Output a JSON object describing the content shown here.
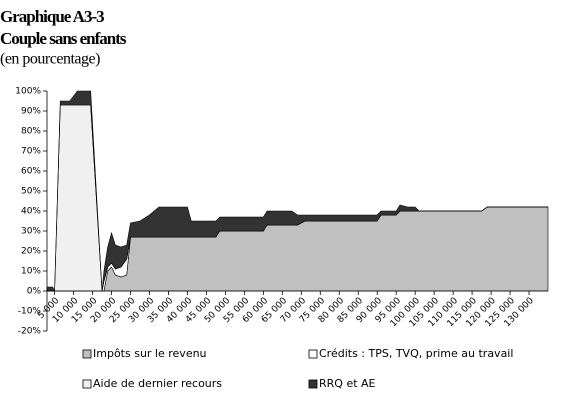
{
  "chart_data": {
    "type": "stacked_area",
    "title": "Graphique A3-3",
    "subtitle": "Couple sans enfants",
    "note": "(en pourcentage)",
    "x": [
      3000,
      4500,
      5000,
      6500,
      9000,
      11000,
      14500,
      17500,
      18000,
      19000,
      20000,
      21000,
      22500,
      24000,
      25000,
      27500,
      30000,
      32500,
      40000,
      41000,
      47500,
      48500,
      60000,
      61000,
      67500,
      69000,
      71000,
      90000,
      91000,
      95000,
      96000,
      98000,
      100000,
      101000,
      117500,
      119000,
      135000
    ],
    "series": [
      {
        "name": "Impôts sur le revenu",
        "color": "#c0c0c0",
        "values": [
          0,
          0,
          0,
          0,
          0,
          0,
          0,
          0,
          0,
          10,
          12,
          8,
          7,
          8,
          27,
          27,
          27,
          27,
          27,
          27,
          27,
          30,
          30,
          33,
          33,
          33,
          35,
          35,
          38,
          38,
          40,
          40,
          40,
          40,
          40,
          42,
          42
        ]
      },
      {
        "name": "Crédits : TPS, TVQ, prime au travail",
        "color": "#ffffff",
        "values": [
          0,
          0,
          0,
          0,
          0,
          0,
          0,
          0,
          5,
          2,
          2,
          3,
          5,
          8,
          0,
          0,
          0,
          0,
          0,
          0,
          0,
          0,
          0,
          0,
          0,
          0,
          0,
          0,
          0,
          0,
          0,
          0,
          0,
          0,
          0,
          0,
          0
        ]
      },
      {
        "name": "Aide de dernier recours",
        "color": "#f0f0f0",
        "values": [
          0,
          0,
          0,
          93,
          93,
          93,
          93,
          0,
          0,
          0,
          0,
          0,
          0,
          0,
          0,
          0,
          0,
          0,
          0,
          0,
          0,
          0,
          0,
          0,
          0,
          0,
          0,
          0,
          0,
          0,
          0,
          0,
          0,
          0,
          0,
          0,
          0
        ]
      },
      {
        "name": "RRQ et AE",
        "color": "#333333",
        "values": [
          2,
          2,
          0,
          2,
          2,
          7,
          7,
          0,
          5,
          10,
          15,
          12,
          10,
          7,
          7,
          8,
          11,
          15,
          15,
          8,
          8,
          7,
          7,
          7,
          7,
          5,
          3,
          3,
          2,
          2,
          3,
          2,
          2,
          0,
          0,
          0,
          0
        ]
      }
    ],
    "xlim": [
      3000,
      135000
    ],
    "xticks": [
      {
        "value": 5000,
        "label": "5 000"
      },
      {
        "value": 10000,
        "label": "10 000"
      },
      {
        "value": 15000,
        "label": "15 000"
      },
      {
        "value": 20000,
        "label": "20 000"
      },
      {
        "value": 25000,
        "label": "25 000"
      },
      {
        "value": 30000,
        "label": "30 000"
      },
      {
        "value": 35000,
        "label": "35 000"
      },
      {
        "value": 40000,
        "label": "40 000"
      },
      {
        "value": 45000,
        "label": "45 000"
      },
      {
        "value": 50000,
        "label": "50 000"
      },
      {
        "value": 55000,
        "label": "55 000"
      },
      {
        "value": 60000,
        "label": "60 000"
      },
      {
        "value": 65000,
        "label": "65 000"
      },
      {
        "value": 70000,
        "label": "70 000"
      },
      {
        "value": 75000,
        "label": "75 000"
      },
      {
        "value": 80000,
        "label": "80 000"
      },
      {
        "value": 85000,
        "label": "85 000"
      },
      {
        "value": 90000,
        "label": "90 000"
      },
      {
        "value": 95000,
        "label": "95 000"
      },
      {
        "value": 100000,
        "label": "100 000"
      },
      {
        "value": 105000,
        "label": "105 000"
      },
      {
        "value": 110000,
        "label": "110 000"
      },
      {
        "value": 115000,
        "label": "115 000"
      },
      {
        "value": 120000,
        "label": "120 000"
      },
      {
        "value": 125000,
        "label": "125 000"
      },
      {
        "value": 130000,
        "label": "130 000"
      }
    ],
    "ylim": [
      -20,
      100
    ],
    "yticks": [
      {
        "value": -20,
        "label": "-20%"
      },
      {
        "value": -10,
        "label": "-10%"
      },
      {
        "value": 0,
        "label": "0%"
      },
      {
        "value": 10,
        "label": "10%"
      },
      {
        "value": 20,
        "label": "20%"
      },
      {
        "value": 30,
        "label": "30%"
      },
      {
        "value": 40,
        "label": "40%"
      },
      {
        "value": 50,
        "label": "50%"
      },
      {
        "value": 60,
        "label": "60%"
      },
      {
        "value": 70,
        "label": "70%"
      },
      {
        "value": 80,
        "label": "80%"
      },
      {
        "value": 90,
        "label": "90%"
      },
      {
        "value": 100,
        "label": "100%"
      }
    ],
    "legend": "bottom"
  }
}
